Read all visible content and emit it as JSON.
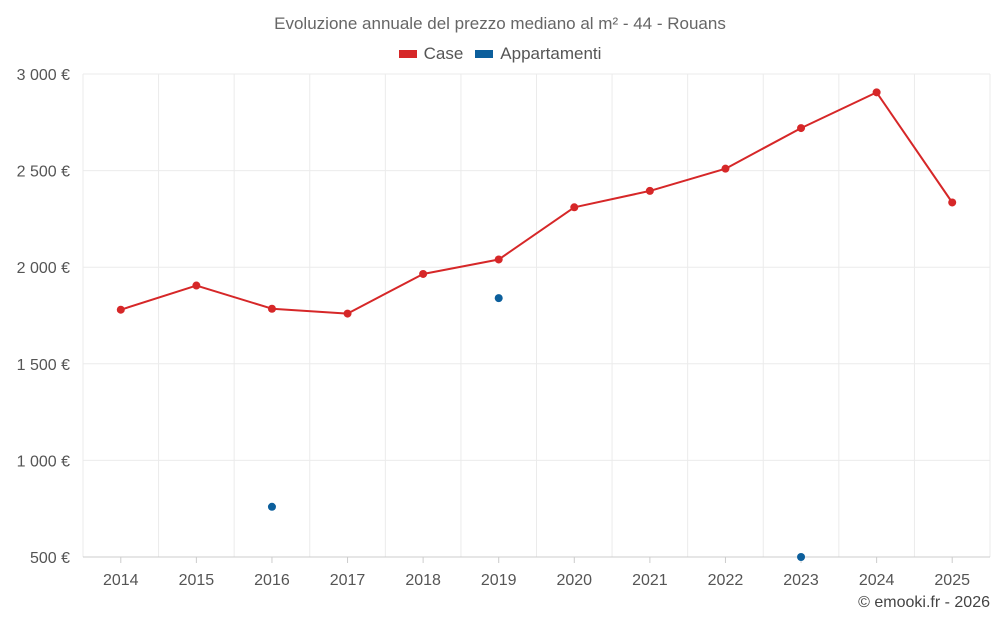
{
  "chart_data": {
    "type": "line",
    "title": "Evoluzione annuale del prezzo mediano al m² - 44 - Rouans",
    "categories": [
      "2014",
      "2015",
      "2016",
      "2017",
      "2018",
      "2019",
      "2020",
      "2021",
      "2022",
      "2023",
      "2024",
      "2025"
    ],
    "ylim": [
      500,
      3000
    ],
    "yticks": [
      500,
      1000,
      1500,
      2000,
      2500,
      3000
    ],
    "ytick_labels": [
      "500 €",
      "1 000 €",
      "1 500 €",
      "2 000 €",
      "2 500 €",
      "3 000 €"
    ],
    "grid": true,
    "legend_position": "top-center",
    "series": [
      {
        "name": "Case",
        "color": "#d62728",
        "style": "line-markers",
        "values": [
          1780,
          1905,
          1785,
          1760,
          1965,
          2040,
          2310,
          2395,
          2510,
          2720,
          2905,
          2335
        ]
      },
      {
        "name": "Appartamenti",
        "color": "#0c5f9c",
        "style": "markers",
        "values": [
          null,
          null,
          760,
          null,
          null,
          1840,
          null,
          null,
          null,
          500,
          null,
          null
        ]
      }
    ]
  },
  "credit": "© emooki.fr - 2026"
}
